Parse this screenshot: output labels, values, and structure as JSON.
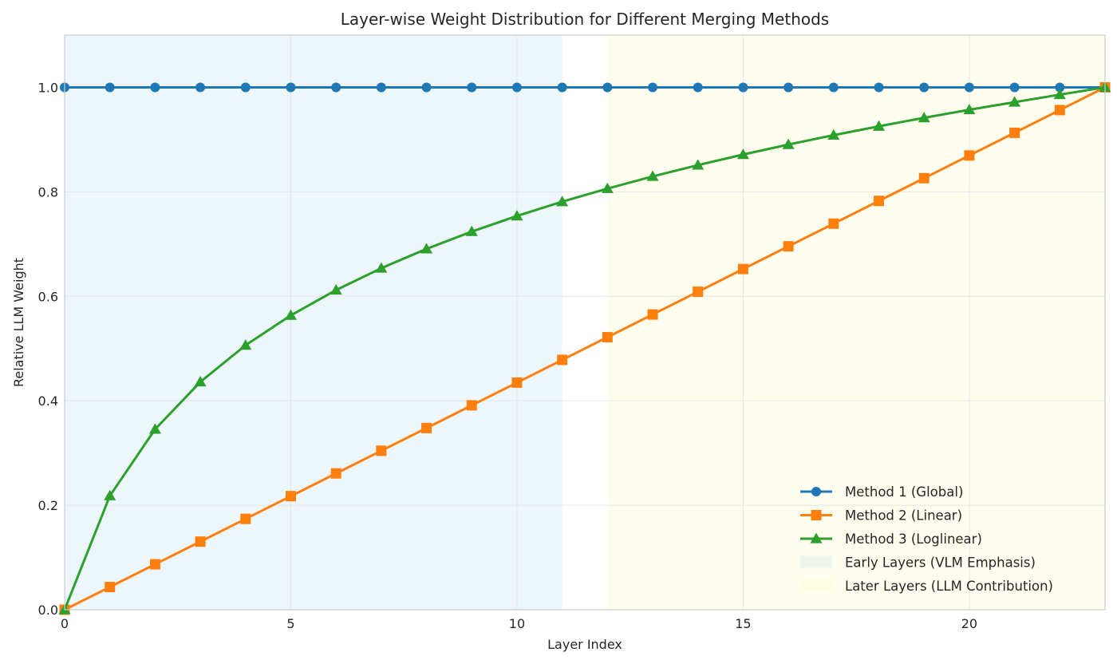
{
  "chart_data": {
    "type": "line",
    "title": "Layer-wise Weight Distribution for Different Merging Methods",
    "xlabel": "Layer Index",
    "ylabel": "Relative LLM Weight",
    "xlim": [
      0,
      23
    ],
    "ylim": [
      0,
      1.1
    ],
    "xticks": [
      0,
      5,
      10,
      15,
      20
    ],
    "yticks": [
      0.0,
      0.2,
      0.4,
      0.6,
      0.8,
      1.0
    ],
    "xtick_labels": [
      "0",
      "5",
      "10",
      "15",
      "20"
    ],
    "ytick_labels": [
      "0.0",
      "0.2",
      "0.4",
      "0.6",
      "0.8",
      "1.0"
    ],
    "grid": true,
    "legend_position": "bottom-right",
    "x": [
      0,
      1,
      2,
      3,
      4,
      5,
      6,
      7,
      8,
      9,
      10,
      11,
      12,
      13,
      14,
      15,
      16,
      17,
      18,
      19,
      20,
      21,
      22,
      23
    ],
    "series": [
      {
        "name": "Method 1 (Global)",
        "color": "#1f77b4",
        "marker": "circle",
        "values": [
          1,
          1,
          1,
          1,
          1,
          1,
          1,
          1,
          1,
          1,
          1,
          1,
          1,
          1,
          1,
          1,
          1,
          1,
          1,
          1,
          1,
          1,
          1,
          1
        ]
      },
      {
        "name": "Method 2 (Linear)",
        "color": "#ff7f0e",
        "marker": "square",
        "values": [
          0,
          0.0435,
          0.087,
          0.1304,
          0.1739,
          0.2174,
          0.2609,
          0.3043,
          0.3478,
          0.3913,
          0.4348,
          0.4783,
          0.5217,
          0.5652,
          0.6087,
          0.6522,
          0.6957,
          0.7391,
          0.7826,
          0.8261,
          0.8696,
          0.913,
          0.9565,
          1
        ]
      },
      {
        "name": "Method 3 (Loglinear)",
        "color": "#2ca02c",
        "marker": "triangle",
        "values": [
          0,
          0.218,
          0.3455,
          0.4361,
          0.5063,
          0.5635,
          0.6119,
          0.6538,
          0.6908,
          0.7239,
          0.7538,
          0.7811,
          0.8062,
          0.8295,
          0.8511,
          0.8714,
          0.8905,
          0.9085,
          0.9255,
          0.9417,
          0.9571,
          0.9717,
          0.9861,
          1
        ]
      }
    ],
    "regions": [
      {
        "name": "Early Layers (VLM Emphasis)",
        "x_start": 0,
        "x_end": 11,
        "color": "#add8e6",
        "opacity": 0.22
      },
      {
        "name": "Later Layers (LLM Contribution)",
        "x_start": 12,
        "x_end": 23,
        "color": "#fffacd",
        "opacity": 0.35
      }
    ]
  }
}
